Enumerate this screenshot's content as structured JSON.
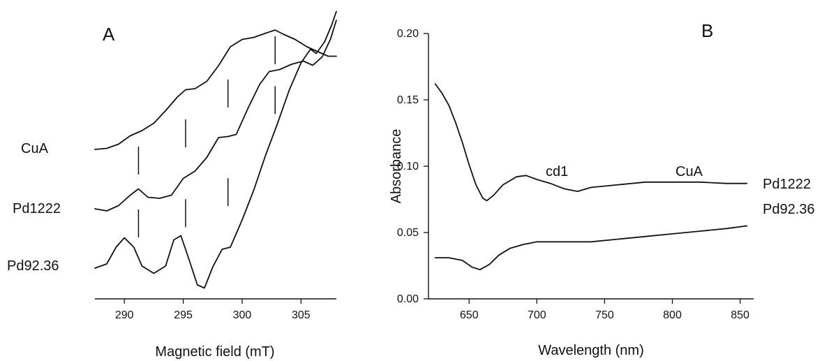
{
  "chart_data": [
    {
      "panel": "A",
      "type": "line",
      "xlabel": "Magnetic field (mT)",
      "ylabel": "",
      "xlim": [
        287.5,
        308
      ],
      "xticks": [
        290,
        295,
        300,
        305
      ],
      "yticks": false,
      "grid": false,
      "series": [
        {
          "name": "CuA",
          "x": [
            287.5,
            288.5,
            289.5,
            290.5,
            291.5,
            292.5,
            293.5,
            294.5,
            295.2,
            296,
            297,
            298,
            299,
            300,
            301,
            302,
            302.8,
            303.5,
            304.5,
            305.5,
            306.5,
            307.3,
            308
          ],
          "y": [
            0.0,
            0.2,
            1.0,
            2.6,
            3.6,
            5.0,
            7.4,
            10.0,
            11.4,
            11.6,
            13.0,
            16.0,
            19.6,
            21.0,
            21.4,
            22.2,
            22.8,
            22.0,
            21.0,
            19.6,
            18.6,
            17.8,
            17.8
          ]
        },
        {
          "name": "Pd1222",
          "x": [
            287.5,
            288.5,
            289.5,
            290.5,
            291.2,
            292,
            293,
            294,
            295,
            296,
            297,
            298,
            298.8,
            299.5,
            300.5,
            301.5,
            302.3,
            303.2,
            304.2,
            305.2,
            306,
            306.8,
            307.5,
            308
          ],
          "y": [
            0.0,
            -0.4,
            0.6,
            2.6,
            3.8,
            2.2,
            2.0,
            2.6,
            5.8,
            7.2,
            9.8,
            13.6,
            13.8,
            14.2,
            19.2,
            23.8,
            26.2,
            26.6,
            27.6,
            28.2,
            27.4,
            29.0,
            32.4,
            36.0
          ]
        },
        {
          "name": "Pd92.36",
          "x": [
            287.5,
            288.5,
            289.3,
            290,
            290.8,
            291.5,
            292.5,
            293.5,
            294.2,
            294.8,
            295.5,
            296.2,
            296.8,
            297.5,
            298.3,
            299,
            300,
            301,
            302,
            303,
            304,
            305,
            305.8,
            306.3,
            307,
            307.6,
            308
          ],
          "y": [
            0.0,
            0.8,
            4.0,
            5.8,
            4.0,
            0.4,
            -1.0,
            0.4,
            5.4,
            6.2,
            1.6,
            -3.2,
            -3.8,
            0.2,
            3.6,
            4.0,
            9.2,
            15.0,
            21.6,
            27.6,
            34.0,
            39.2,
            41.8,
            41.0,
            43.2,
            46.4,
            49.0
          ]
        }
      ],
      "markers": [
        {
          "x": 291.2,
          "series": "CuA"
        },
        {
          "x": 295.2,
          "series": "CuA"
        },
        {
          "x": 298.8,
          "series": "CuA"
        },
        {
          "x": 302.8,
          "series": "CuA"
        },
        {
          "x": 291.2,
          "series": "Pd1222"
        },
        {
          "x": 295.2,
          "series": "Pd1222"
        },
        {
          "x": 298.8,
          "series": "Pd1222"
        },
        {
          "x": 302.8,
          "series": "Pd1222"
        }
      ],
      "labels": {
        "panel": "A",
        "trace1": "CuA",
        "trace2": "Pd1222",
        "trace3": "Pd92.36"
      }
    },
    {
      "panel": "B",
      "type": "line",
      "xlabel": "Wavelength (nm)",
      "ylabel": "Absorbance",
      "xlim": [
        620,
        860
      ],
      "ylim": [
        0,
        0.2
      ],
      "xticks": [
        650,
        700,
        750,
        800,
        850
      ],
      "yticks": [
        "0.00",
        "0.05",
        "0.10",
        "0.15",
        "0.20"
      ],
      "grid": false,
      "annotations": [
        "cd1",
        "CuA"
      ],
      "series": [
        {
          "name": "Pd1222",
          "x": [
            625,
            630,
            635,
            640,
            645,
            650,
            655,
            660,
            663,
            668,
            675,
            685,
            692,
            700,
            710,
            720,
            730,
            740,
            750,
            760,
            780,
            800,
            820,
            840,
            855
          ],
          "y": [
            0.162,
            0.155,
            0.146,
            0.133,
            0.118,
            0.101,
            0.086,
            0.076,
            0.074,
            0.078,
            0.086,
            0.092,
            0.093,
            0.09,
            0.087,
            0.083,
            0.081,
            0.084,
            0.085,
            0.086,
            0.088,
            0.088,
            0.088,
            0.087,
            0.087
          ]
        },
        {
          "name": "Pd92.36",
          "x": [
            625,
            635,
            645,
            652,
            658,
            665,
            672,
            680,
            690,
            700,
            720,
            740,
            760,
            780,
            800,
            820,
            840,
            855
          ],
          "y": [
            0.031,
            0.031,
            0.029,
            0.024,
            0.022,
            0.026,
            0.033,
            0.038,
            0.041,
            0.043,
            0.043,
            0.043,
            0.045,
            0.047,
            0.049,
            0.051,
            0.053,
            0.055
          ]
        }
      ],
      "labels": {
        "panel": "B",
        "trace1": "Pd1222",
        "trace2": "Pd92.36",
        "ann1": "cd1",
        "ann2": "CuA"
      }
    }
  ]
}
